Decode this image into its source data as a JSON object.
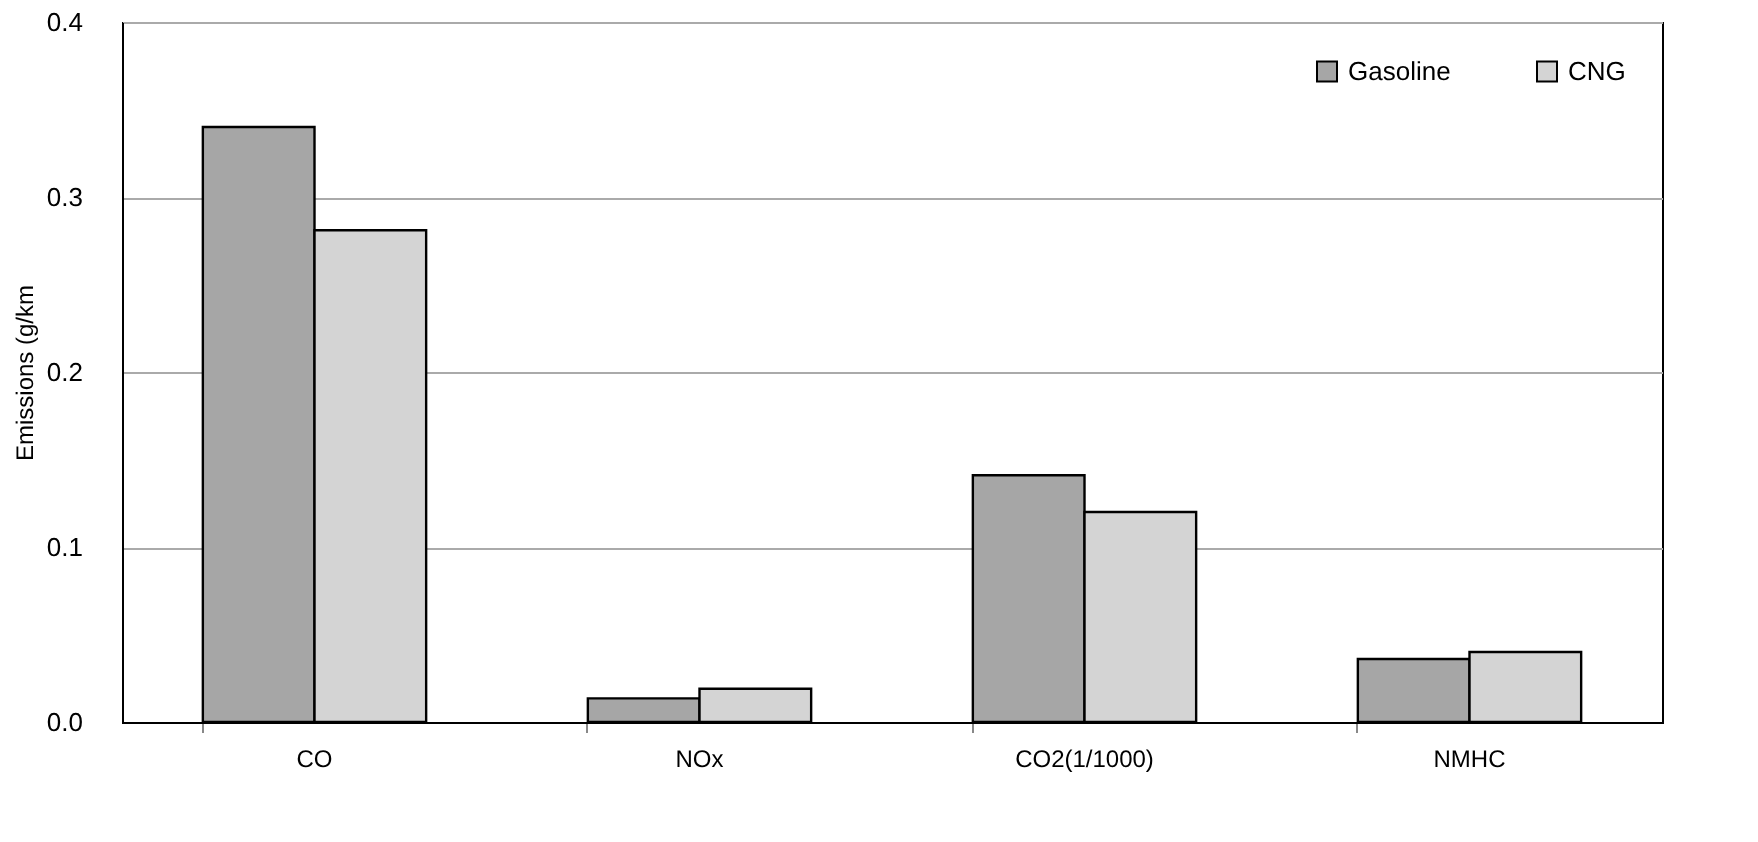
{
  "chart_data": {
    "type": "bar",
    "ylabel": "Emissions (g/km",
    "categories": [
      "CO",
      "NOx",
      "CO2(1/1000)",
      "NMHC"
    ],
    "series": [
      {
        "name": "Gasoline",
        "color": "#a6a6a6",
        "values": [
          0.34,
          0.0135,
          0.141,
          0.036
        ]
      },
      {
        "name": "CNG",
        "color": "#d4d4d4",
        "values": [
          0.281,
          0.019,
          0.12,
          0.04
        ]
      }
    ],
    "ylim": [
      0,
      0.4
    ],
    "yticks": [
      {
        "value": 0,
        "label": "0.0"
      },
      0.1,
      0.2,
      0.3,
      0.4
    ],
    "grid": "y",
    "legend": "top right"
  }
}
